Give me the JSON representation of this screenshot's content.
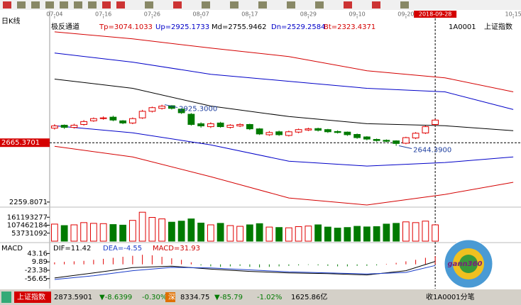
{
  "window": {
    "period": "日K线",
    "indicator": "极反通道",
    "params": [
      "Tp=3074.1033",
      "Up=2925.1733",
      "Md=2755.9462",
      "Dn=2529.2584",
      "Bt=2323.4371"
    ],
    "code": "1A0001",
    "name": "上证指数"
  },
  "chart_data": [
    {
      "type": "candlestick",
      "xlim": [
        -0.5,
        47.5
      ],
      "xticks": [
        {
          "value": 0,
          "label": "07-04"
        },
        {
          "value": 5,
          "label": "07-16"
        },
        {
          "value": 10,
          "label": "07-26"
        },
        {
          "value": 15,
          "label": "08-07"
        },
        {
          "value": 20,
          "label": "08-17"
        },
        {
          "value": 26,
          "label": "08-29"
        },
        {
          "value": 31,
          "label": "09-10"
        },
        {
          "value": 36,
          "label": "09-20"
        },
        {
          "value": 39,
          "label": "2018-09-28"
        },
        {
          "value": 47,
          "label": "10-15"
        }
      ],
      "ylim": [
        2235,
        3495
      ],
      "yticks": [
        2259.8071
      ],
      "crosshair": 2665.3701,
      "open": [
        2765,
        2785,
        2770,
        2790,
        2815,
        2830,
        2840,
        2815,
        2800,
        2835,
        2880,
        2900,
        2918,
        2895,
        2860,
        2795,
        2775,
        2800,
        2770,
        2780,
        2790,
        2760,
        2720,
        2740,
        2715,
        2738,
        2752,
        2762,
        2755,
        2742,
        2738,
        2722,
        2705,
        2688,
        2682,
        2678,
        2662,
        2698,
        2732,
        2790
      ],
      "high": [
        2792,
        2790,
        2795,
        2820,
        2838,
        2845,
        2850,
        2820,
        2838,
        2890,
        2912,
        2925,
        2922,
        2900,
        2868,
        2805,
        2805,
        2808,
        2792,
        2798,
        2795,
        2765,
        2745,
        2748,
        2748,
        2762,
        2768,
        2768,
        2760,
        2750,
        2742,
        2728,
        2710,
        2694,
        2688,
        2682,
        2706,
        2738,
        2782,
        2828
      ],
      "low": [
        2755,
        2760,
        2762,
        2782,
        2808,
        2822,
        2812,
        2792,
        2792,
        2828,
        2872,
        2892,
        2892,
        2862,
        2782,
        2768,
        2766,
        2768,
        2762,
        2772,
        2752,
        2718,
        2712,
        2712,
        2708,
        2730,
        2745,
        2742,
        2732,
        2728,
        2712,
        2692,
        2682,
        2672,
        2668,
        2644,
        2655,
        2690,
        2725,
        2782
      ],
      "close": [
        2780,
        2770,
        2785,
        2810,
        2830,
        2835,
        2820,
        2800,
        2830,
        2880,
        2905,
        2915,
        2900,
        2870,
        2790,
        2780,
        2795,
        2775,
        2785,
        2790,
        2760,
        2725,
        2735,
        2720,
        2740,
        2755,
        2760,
        2750,
        2740,
        2735,
        2720,
        2700,
        2690,
        2680,
        2675,
        2660,
        2700,
        2730,
        2775,
        2820
      ],
      "series": [
        {
          "color": "#d40000",
          "x": [
            0,
            8,
            16,
            24,
            32,
            40,
            47
          ],
          "values": [
            3423,
            3375,
            3312,
            3254,
            3157,
            3109,
            3013
          ]
        },
        {
          "color": "#0000c8",
          "x": [
            0,
            8,
            16,
            24,
            32,
            40,
            47
          ],
          "values": [
            3278,
            3216,
            3133,
            3085,
            3037,
            3013,
            2892
          ]
        },
        {
          "color": "#000000",
          "x": [
            0,
            8,
            16,
            24,
            32,
            40,
            47
          ],
          "values": [
            3100,
            3037,
            2916,
            2844,
            2795,
            2781,
            2747
          ]
        },
        {
          "color": "#0000c8",
          "x": [
            0,
            8,
            16,
            24,
            32,
            40,
            47
          ],
          "values": [
            2781,
            2733,
            2651,
            2539,
            2506,
            2530,
            2568
          ]
        },
        {
          "color": "#d40000",
          "x": [
            0,
            8,
            16,
            24,
            32,
            40,
            47
          ],
          "values": [
            2641,
            2568,
            2433,
            2288,
            2240,
            2312,
            2395
          ]
        }
      ],
      "annotations": [
        {
          "x": 11,
          "value": 2925.3,
          "label": "2925.3000"
        },
        {
          "x": 35,
          "value": 2644.39,
          "label": "2644.3900"
        }
      ]
    },
    {
      "type": "bar",
      "ylim": [
        0,
        215000000
      ],
      "yticks": [
        161193277,
        107462184,
        53731092
      ],
      "values": [
        115000000,
        105000000,
        110000000,
        125000000,
        120000000,
        118000000,
        112000000,
        108000000,
        140000000,
        195000000,
        160000000,
        150000000,
        128000000,
        135000000,
        150000000,
        122000000,
        110000000,
        120000000,
        105000000,
        100000000,
        110000000,
        118000000,
        95000000,
        92000000,
        90000000,
        98000000,
        102000000,
        110000000,
        95000000,
        88000000,
        92000000,
        100000000,
        96000000,
        98000000,
        115000000,
        120000000,
        130000000,
        125000000,
        135000000,
        110000000
      ]
    },
    {
      "type": "macd",
      "title": "MACD",
      "labels": [
        "DIF=11.42",
        "DEA=-4.55",
        "MACD=31.93"
      ],
      "ylim": [
        -91,
        78
      ],
      "yticks": [
        43.16,
        9.89,
        -23.38,
        -56.65
      ],
      "histogram": [
        8,
        10,
        12,
        14,
        18,
        22,
        26,
        30,
        34,
        38,
        36,
        30,
        24,
        18,
        8,
        -4,
        -8,
        -10,
        -8,
        -6,
        -10,
        -12,
        -10,
        -8,
        -6,
        -4,
        -2,
        -4,
        -6,
        -8,
        -8,
        -6,
        -6,
        -4,
        2,
        6,
        12,
        18,
        26,
        31.93
      ],
      "series": [
        {
          "color": "#000000",
          "x": [
            0,
            4,
            8,
            12,
            16,
            20,
            24,
            28,
            32,
            36,
            39
          ],
          "values": [
            -54,
            -34,
            -13,
            -7,
            -19,
            -28,
            -34,
            -37,
            -42,
            -25,
            11.42
          ]
        },
        {
          "color": "#1a3cc8",
          "x": [
            0,
            4,
            8,
            12,
            16,
            20,
            24,
            28,
            32,
            36,
            39
          ],
          "values": [
            -60,
            -45,
            -25,
            -12,
            -14,
            -22,
            -30,
            -34,
            -38,
            -32,
            -4.55
          ]
        }
      ]
    }
  ],
  "status_bar": {
    "index_name": "上证指数",
    "items": [
      "2873.5901",
      "▼-8.6399",
      "-0.30%",
      "深",
      "8334.75",
      "▼-85.79",
      "-1.02%",
      "1625.86亿"
    ],
    "right": "收1A0001分笔"
  },
  "logo": "gann360"
}
